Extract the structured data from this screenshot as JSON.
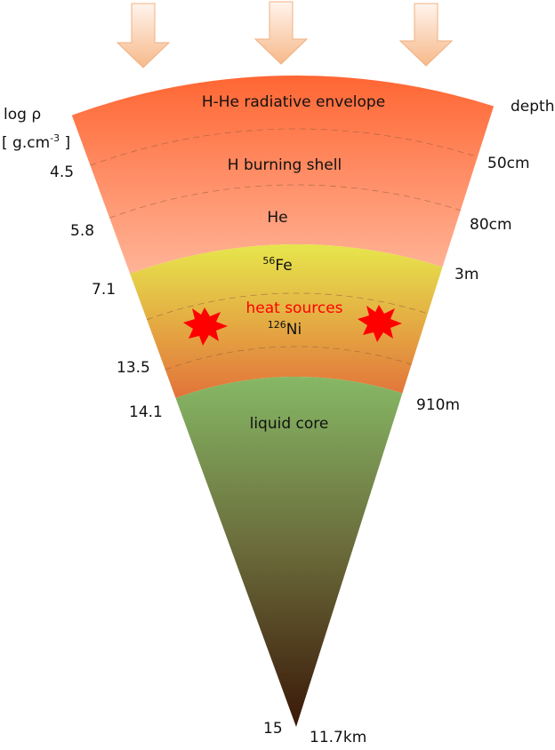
{
  "layers": [
    {
      "label": "H-He radiative envelope"
    },
    {
      "label": "H burning shell"
    },
    {
      "label": "He"
    },
    {
      "label": {
        "sup": "56",
        "base": "Fe"
      }
    },
    {
      "label": "heat sources"
    },
    {
      "label": {
        "sup": "126",
        "base": "Ni"
      }
    },
    {
      "label": "liquid core"
    }
  ],
  "density_axis": {
    "title": "log ρ",
    "unit": {
      "prefix": "[ g.cm",
      "sup": "-3",
      "suffix": " ]"
    },
    "labels": [
      "4.5",
      "5.8",
      "7.1",
      "13.5",
      "14.1",
      "15"
    ]
  },
  "depth_axis": {
    "title": "depth",
    "labels": [
      "50cm",
      "80cm",
      "3m",
      "910m",
      "11.7km"
    ]
  }
}
